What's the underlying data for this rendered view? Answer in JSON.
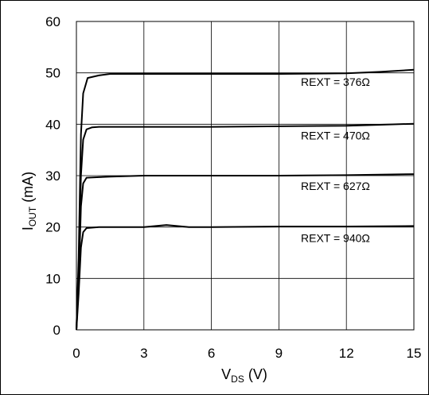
{
  "chart_data": {
    "type": "line",
    "title": "",
    "xlabel": {
      "main": "V",
      "sub": "DS",
      "unit": " (V)"
    },
    "ylabel": {
      "main": "I",
      "sub": "OUT",
      "unit": " (mA)"
    },
    "xlim": [
      0,
      15
    ],
    "ylim": [
      0,
      60
    ],
    "xticks": [
      "0",
      "3",
      "6",
      "9",
      "12",
      "15"
    ],
    "yticks": [
      "0",
      "10",
      "20",
      "30",
      "40",
      "50",
      "60"
    ],
    "grid": true,
    "series": [
      {
        "name": "REXT = 376Ω",
        "x": [
          0,
          0.1,
          0.2,
          0.3,
          0.5,
          1.0,
          1.5,
          3,
          6,
          9,
          12,
          13.5,
          15
        ],
        "y": [
          0,
          14,
          38,
          46,
          49,
          49.5,
          49.8,
          49.8,
          49.8,
          49.8,
          49.9,
          50.2,
          50.6
        ]
      },
      {
        "name": "REXT = 470Ω",
        "x": [
          0,
          0.1,
          0.2,
          0.3,
          0.45,
          0.7,
          1.0,
          3,
          6,
          9,
          12,
          13.5,
          15
        ],
        "y": [
          0,
          12,
          30,
          37,
          39,
          39.4,
          39.5,
          39.5,
          39.5,
          39.6,
          39.7,
          39.9,
          40.1
        ]
      },
      {
        "name": "REXT = 627Ω",
        "x": [
          0,
          0.1,
          0.2,
          0.3,
          0.45,
          1.0,
          1.5,
          3,
          6,
          9,
          12,
          15
        ],
        "y": [
          0,
          9,
          24,
          28.5,
          29.6,
          29.7,
          29.8,
          30,
          30,
          30,
          30.1,
          30.3
        ]
      },
      {
        "name": "REXT = 940Ω",
        "x": [
          0,
          0.1,
          0.2,
          0.3,
          0.45,
          1.0,
          3,
          4,
          5,
          6,
          9,
          12,
          15
        ],
        "y": [
          0,
          7,
          16,
          19,
          19.8,
          20,
          20,
          20.4,
          20,
          20,
          20.1,
          20.1,
          20.2
        ]
      }
    ],
    "annotations": [
      {
        "text": "REXT = 376Ω",
        "series": 0
      },
      {
        "text": "REXT = 470Ω",
        "series": 1
      },
      {
        "text": "REXT = 627Ω",
        "series": 2
      },
      {
        "text": "REXT = 940Ω",
        "series": 3
      }
    ],
    "line_color": "#000000",
    "grid_color": "#000000",
    "legend": "none"
  }
}
